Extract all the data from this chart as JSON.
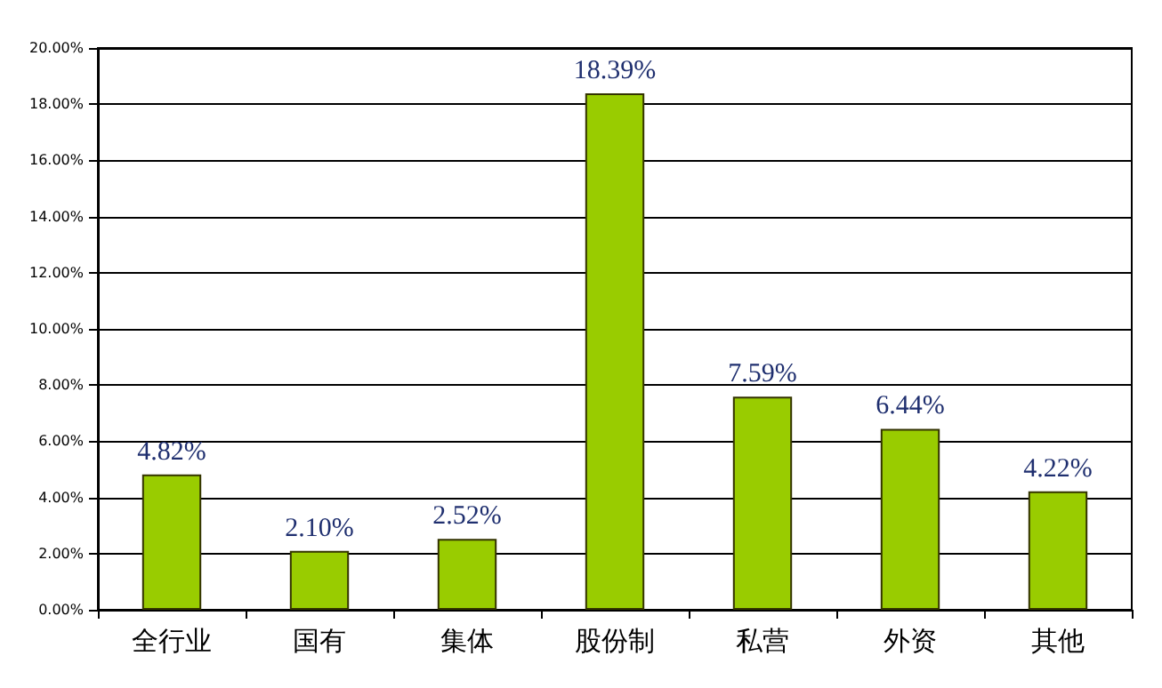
{
  "chart_data": {
    "type": "bar",
    "categories": [
      "全行业",
      "国有",
      "集体",
      "股份制",
      "私营",
      "外资",
      "其他"
    ],
    "values": [
      4.82,
      2.1,
      2.52,
      18.39,
      7.59,
      6.44,
      4.22
    ],
    "value_labels": [
      "4.82%",
      "2.10%",
      "2.52%",
      "18.39%",
      "7.59%",
      "6.44%",
      "4.22%"
    ],
    "color": "#99cc00",
    "ylim": [
      0,
      20
    ],
    "yticks": [
      {
        "value": 0,
        "label": "0.00%"
      },
      {
        "value": 2,
        "label": "2.00%"
      },
      {
        "value": 4,
        "label": "4.00%"
      },
      {
        "value": 6,
        "label": "6.00%"
      },
      {
        "value": 8,
        "label": "8.00%"
      },
      {
        "value": 10,
        "label": "10.00%"
      },
      {
        "value": 12,
        "label": "12.00%"
      },
      {
        "value": 14,
        "label": "14.00%"
      },
      {
        "value": 16,
        "label": "16.00%"
      },
      {
        "value": 18,
        "label": "18.00%"
      },
      {
        "value": 20,
        "label": "20.00%"
      }
    ],
    "grid": "y"
  }
}
